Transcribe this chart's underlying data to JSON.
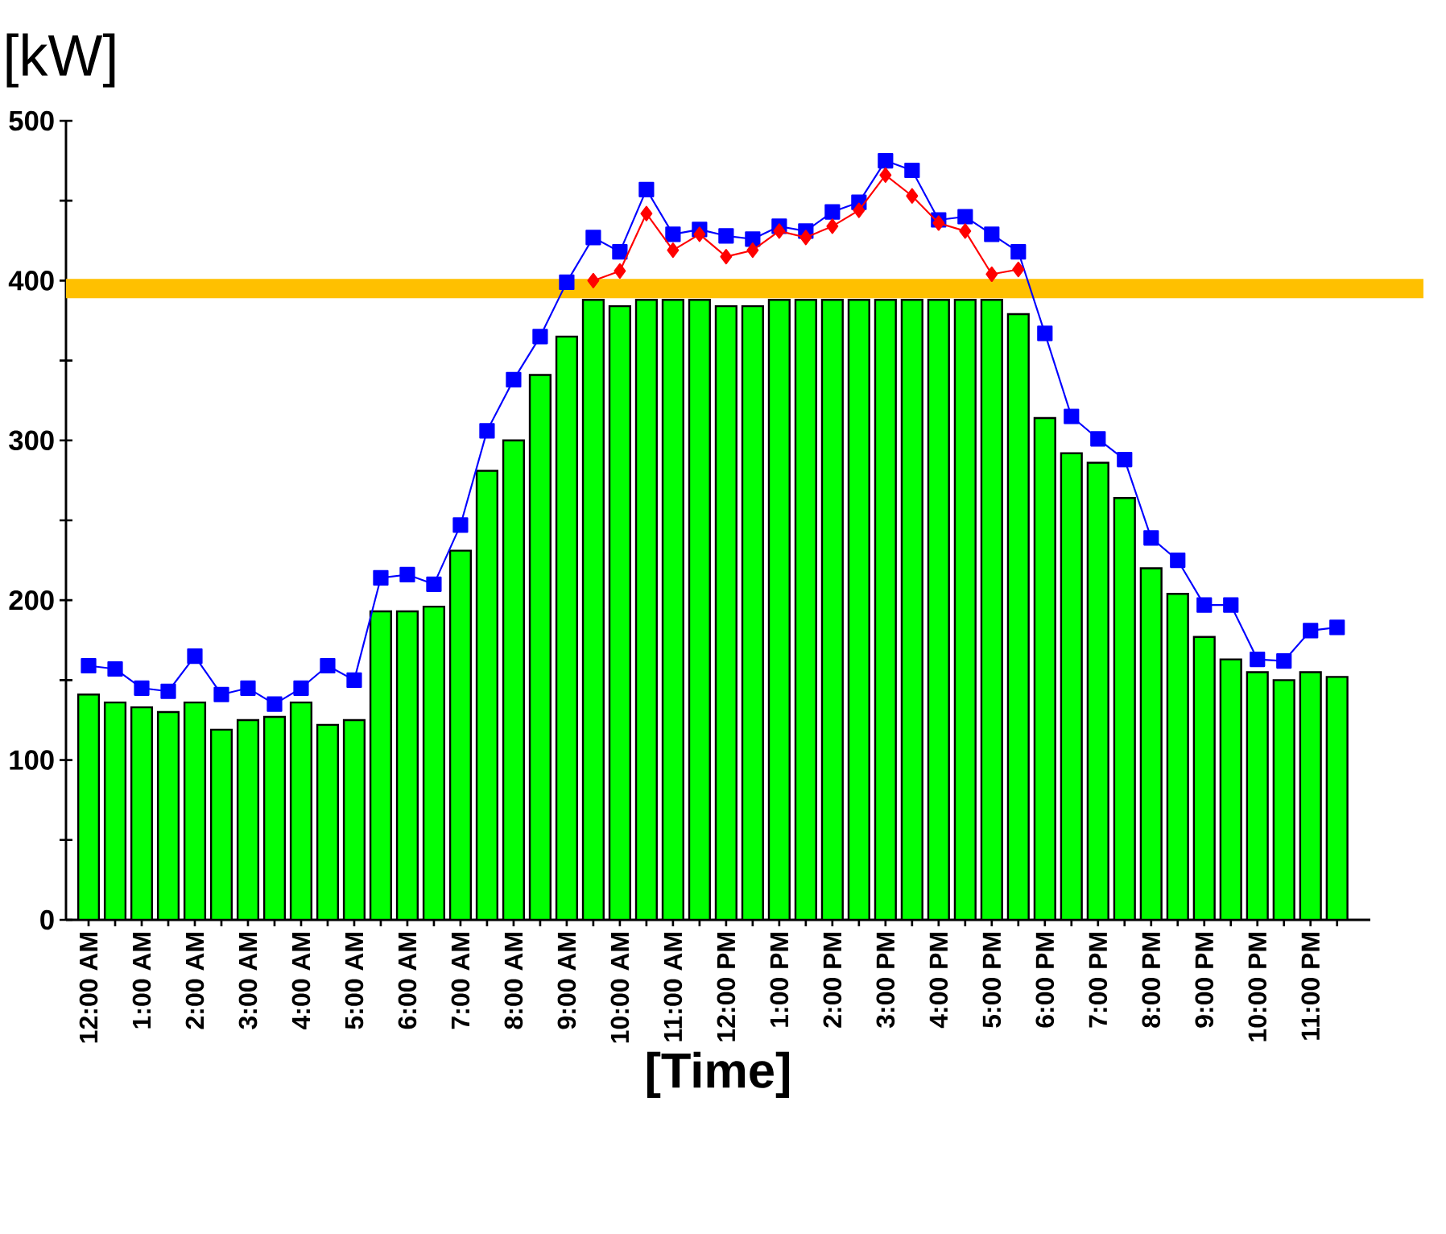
{
  "chart_data": {
    "type": "bar",
    "xlabel": "[Time]",
    "ylabel": "[kW]",
    "categories": [
      "12:00 AM",
      null,
      "1:00 AM",
      null,
      "2:00 AM",
      null,
      "3:00 AM",
      null,
      "4:00 AM",
      null,
      "5:00 AM",
      null,
      "6:00 AM",
      null,
      "7:00 AM",
      null,
      "8:00 AM",
      null,
      "9:00 AM",
      null,
      "10:00 AM",
      null,
      "11:00 AM",
      null,
      "12:00 PM",
      null,
      "1:00 PM",
      null,
      "2:00 PM",
      null,
      "3:00 PM",
      null,
      "4:00 PM",
      null,
      "5:00 PM",
      null,
      "6:00 PM",
      null,
      "7:00 PM",
      null,
      "8:00 PM",
      null,
      "9:00 PM",
      null,
      "10:00 PM",
      null,
      "11:00 PM",
      null
    ],
    "series": [
      {
        "color": "#00ff00",
        "values": [
          141,
          136,
          133,
          130,
          136,
          119,
          125,
          127,
          136,
          122,
          125,
          193,
          193,
          196,
          231,
          281,
          300,
          341,
          365,
          388,
          384,
          388,
          388,
          388,
          384,
          384,
          388,
          388,
          388,
          388,
          388,
          388,
          388,
          388,
          388,
          379,
          314,
          292,
          286,
          264,
          220,
          204,
          177,
          163,
          155,
          150,
          155,
          152
        ]
      },
      {
        "type": "line",
        "color": "#0000ff",
        "marker": "square",
        "values": [
          159,
          157,
          145,
          143,
          165,
          141,
          145,
          135,
          145,
          159,
          150,
          214,
          216,
          210,
          247,
          306,
          338,
          365,
          399,
          427,
          418,
          457,
          429,
          432,
          428,
          426,
          434,
          431,
          443,
          449,
          475,
          469,
          438,
          440,
          429,
          418,
          367,
          315,
          301,
          288,
          239,
          225,
          197,
          197,
          163,
          162,
          181,
          183
        ]
      },
      {
        "type": "line",
        "color": "#ff0000",
        "marker": "diamond",
        "values": [
          null,
          null,
          null,
          null,
          null,
          null,
          null,
          null,
          null,
          null,
          null,
          null,
          null,
          null,
          null,
          null,
          null,
          null,
          null,
          400,
          406,
          442,
          419,
          429,
          415,
          419,
          431,
          427,
          434,
          444,
          466,
          453,
          436,
          431,
          404,
          407,
          null,
          null,
          null,
          null,
          null,
          null,
          null,
          null,
          null,
          null,
          null,
          null
        ]
      }
    ],
    "ylim": [
      0,
      500
    ],
    "yticks": [
      0,
      {
        "value": 50,
        "label": null
      },
      100,
      {
        "value": 150,
        "label": null
      },
      200,
      {
        "value": 250,
        "label": null
      },
      300,
      {
        "value": 350,
        "label": null
      },
      400,
      {
        "value": 450,
        "label": null
      },
      500
    ],
    "ref_lines": [
      {
        "axis": "y",
        "value": 395,
        "color": "#ffc000"
      }
    ]
  }
}
